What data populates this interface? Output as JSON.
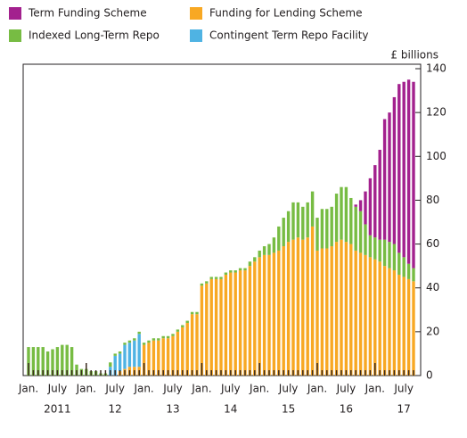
{
  "chart_data": {
    "type": "stacked_bar",
    "y_unit_label": "£ billions",
    "categories": [
      "Jan.",
      null,
      null,
      null,
      null,
      null,
      "July",
      null,
      null,
      null,
      null,
      null,
      "Jan.",
      null,
      null,
      null,
      null,
      null,
      "July",
      null,
      null,
      null,
      null,
      null,
      "Jan.",
      null,
      null,
      null,
      null,
      null,
      "July",
      null,
      null,
      null,
      null,
      null,
      "Jan.",
      null,
      null,
      null,
      null,
      null,
      "July",
      null,
      null,
      null,
      null,
      null,
      "Jan.",
      null,
      null,
      null,
      null,
      null,
      "July",
      null,
      null,
      null,
      null,
      null,
      "Jan.",
      null,
      null,
      null,
      null,
      null,
      "July",
      null,
      null,
      null,
      null,
      null,
      "Jan.",
      null,
      null,
      null,
      null,
      null,
      "July",
      null,
      null
    ],
    "year_labels": [
      "2011",
      "12",
      "13",
      "14",
      "15",
      "16",
      "17"
    ],
    "series": [
      {
        "name": "Term Funding Scheme",
        "color": "#a3218e",
        "values": [
          0,
          0,
          0,
          0,
          0,
          0,
          0,
          0,
          0,
          0,
          0,
          0,
          0,
          0,
          0,
          0,
          0,
          0,
          0,
          0,
          0,
          0,
          0,
          0,
          0,
          0,
          0,
          0,
          0,
          0,
          0,
          0,
          0,
          0,
          0,
          0,
          0,
          0,
          0,
          0,
          0,
          0,
          0,
          0,
          0,
          0,
          0,
          0,
          0,
          0,
          0,
          0,
          0,
          0,
          0,
          0,
          0,
          0,
          0,
          0,
          0,
          0,
          0,
          0,
          0,
          0,
          0,
          0,
          1,
          5,
          15,
          26,
          33,
          41,
          55,
          59,
          67,
          77,
          80,
          84,
          85
        ]
      },
      {
        "name": "Funding for Lending Scheme",
        "color": "#f8a823",
        "values": [
          0,
          0,
          0,
          0,
          0,
          0,
          0,
          0,
          0,
          0,
          0,
          0,
          0,
          0,
          0,
          0,
          0,
          0,
          0,
          2,
          3,
          4,
          4,
          4,
          14,
          15,
          16,
          16,
          17,
          17,
          18,
          20,
          22,
          24,
          28,
          28,
          41,
          42,
          44,
          44,
          44,
          46,
          47,
          47,
          48,
          48,
          50,
          52,
          54,
          55,
          55,
          56,
          57,
          59,
          61,
          62,
          63,
          62,
          63,
          68,
          57,
          58,
          58,
          59,
          61,
          62,
          61,
          60,
          57,
          56,
          55,
          54,
          53,
          52,
          50,
          49,
          48,
          46,
          45,
          44,
          43
        ]
      },
      {
        "name": "Indexed Long-Term Repo",
        "color": "#77bc43",
        "values": [
          13,
          13,
          13,
          13,
          11,
          12,
          13,
          14,
          14,
          13,
          5,
          3,
          3,
          2,
          2,
          1,
          1,
          2,
          1,
          1,
          1,
          1,
          1,
          1,
          1,
          1,
          1,
          1,
          1,
          1,
          1,
          1,
          1,
          1,
          1,
          1,
          1,
          1,
          1,
          1,
          1,
          1,
          1,
          1,
          1,
          1,
          2,
          2,
          3,
          4,
          5,
          7,
          11,
          13,
          14,
          17,
          16,
          15,
          16,
          16,
          15,
          18,
          18,
          18,
          22,
          24,
          25,
          21,
          20,
          19,
          14,
          10,
          10,
          10,
          12,
          12,
          12,
          10,
          9,
          7,
          6
        ]
      },
      {
        "name": "Contingent Term Repo Facility",
        "color": "#4fb3e3",
        "values": [
          0,
          0,
          0,
          0,
          0,
          0,
          0,
          0,
          0,
          0,
          0,
          0,
          0,
          0,
          0,
          0,
          0,
          4,
          9,
          8,
          11,
          11,
          12,
          15,
          0,
          0,
          0,
          0,
          0,
          0,
          0,
          0,
          0,
          0,
          0,
          0,
          0,
          0,
          0,
          0,
          0,
          0,
          0,
          0,
          0,
          0,
          0,
          0,
          0,
          0,
          0,
          0,
          0,
          0,
          0,
          0,
          0,
          0,
          0,
          0,
          0,
          0,
          0,
          0,
          0,
          0,
          0,
          0,
          0,
          0,
          0,
          0,
          0,
          0,
          0,
          0,
          0,
          0,
          0,
          0,
          0
        ]
      }
    ],
    "ylim": [
      0,
      140
    ],
    "yticks": [
      0,
      20,
      40,
      60,
      80,
      100,
      120,
      140
    ],
    "y_axis_side": "right",
    "grid": false
  }
}
